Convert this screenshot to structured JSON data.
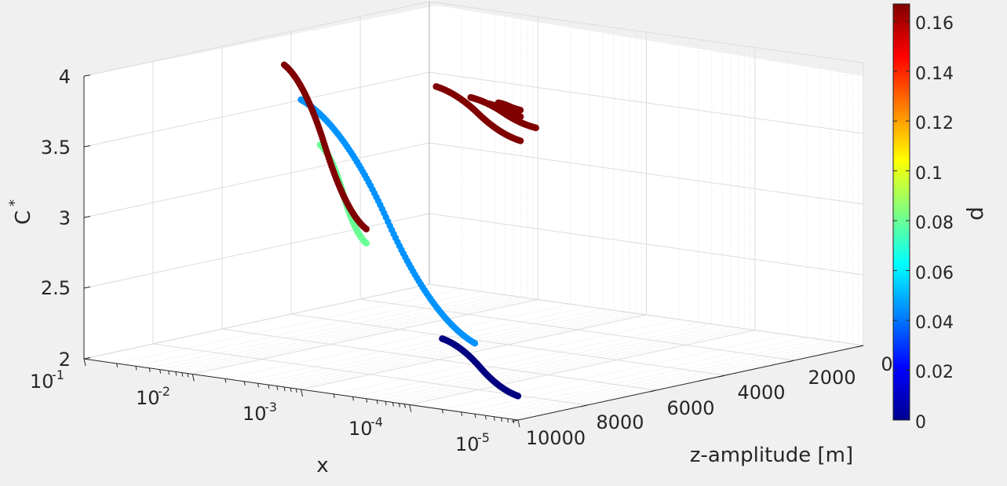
{
  "chart_data": {
    "type": "scatter",
    "view": "3d",
    "xlabel": "x",
    "ylabel": "z-amplitude [m]",
    "zlabel_base": "C",
    "zlabel_sup": "*",
    "x_scale": "log",
    "x_ticks": [
      {
        "base": "10",
        "exp": "-1"
      },
      {
        "base": "10",
        "exp": "-2"
      },
      {
        "base": "10",
        "exp": "-3"
      },
      {
        "base": "10",
        "exp": "-4"
      },
      {
        "base": "10",
        "exp": "-5"
      }
    ],
    "y_ticks": [
      "10000",
      "8000",
      "6000",
      "4000",
      "2000",
      "0"
    ],
    "z_ticks": [
      "2",
      "2.5",
      "3",
      "3.5",
      "4"
    ],
    "zlim": [
      2,
      4
    ],
    "ylim": [
      0,
      10000
    ],
    "xlim": [
      1e-05,
      0.1
    ],
    "grid": true,
    "colormap": "jet",
    "colorbar": {
      "label": "d",
      "ticks": [
        "0",
        "0.02",
        "0.04",
        "0.06",
        "0.08",
        "0.1",
        "0.12",
        "0.14",
        "0.16"
      ],
      "range": [
        0,
        0.167
      ]
    },
    "series": [
      {
        "z_amplitude": 10000,
        "d": 0.0,
        "x_range": [
          0.1,
          0.02
        ],
        "c_range": [
          2.17,
          2.5
        ]
      },
      {
        "z_amplitude": 10000,
        "d": 0.045,
        "x_range": [
          0.04,
          0.001
        ],
        "c_range": [
          2.5,
          4.05
        ]
      },
      {
        "z_amplitude": 10000,
        "d": 0.08,
        "x_range": [
          0.004,
          0.0015
        ],
        "c_range": [
          3.1,
          3.75
        ]
      },
      {
        "z_amplitude": 10000,
        "d": 0.167,
        "x_range": [
          0.004,
          0.0007
        ],
        "c_range": [
          3.2,
          4.28
        ]
      },
      {
        "z_amplitude": 2000,
        "d": 0.167,
        "x_range": [
          0.0003,
          5e-05
        ],
        "c_range": [
          3.28,
          3.58
        ]
      },
      {
        "z_amplitude": 1000,
        "d": 0.167,
        "x_range": [
          0.0002,
          5e-05
        ],
        "c_range": [
          3.3,
          3.45
        ]
      },
      {
        "z_amplitude": 500,
        "d": 0.167,
        "x_range": [
          0.0001,
          5e-05
        ],
        "c_range": [
          3.32,
          3.38
        ]
      },
      {
        "z_amplitude": 200,
        "d": 0.167,
        "x_range": [
          8e-05,
          5e-05
        ],
        "c_range": [
          3.34,
          3.37
        ]
      }
    ]
  }
}
